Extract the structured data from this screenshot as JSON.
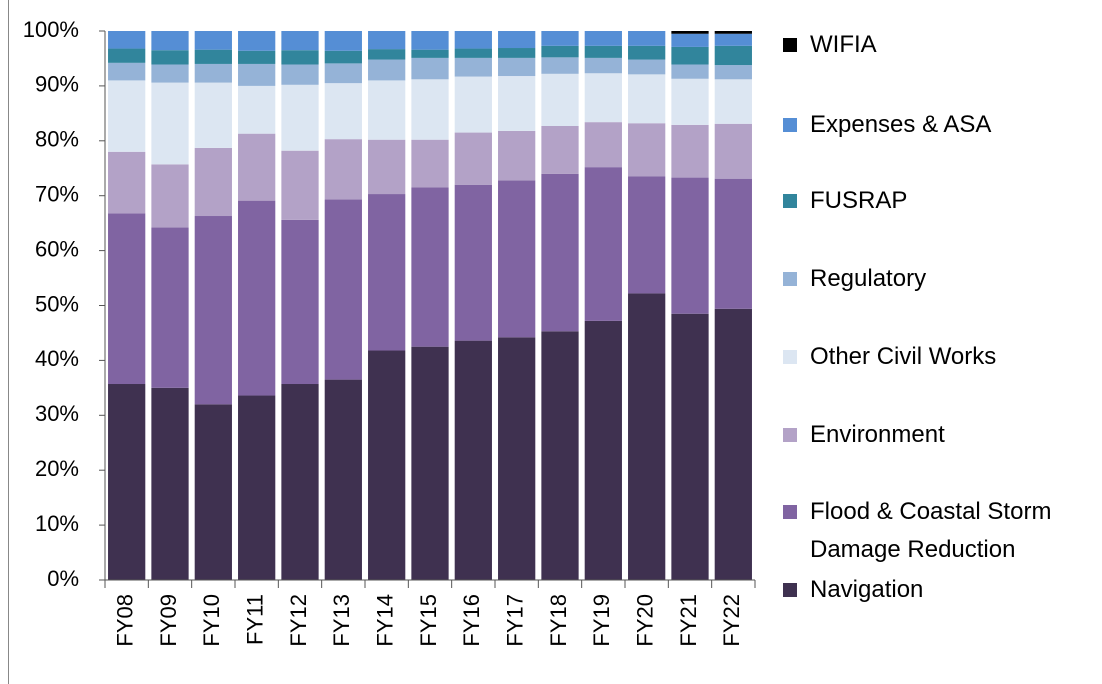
{
  "chart_data": {
    "type": "stacked_bar_percent",
    "categories": [
      "FY08",
      "FY09",
      "FY10",
      "FY11",
      "FY12",
      "FY13",
      "FY14",
      "FY15",
      "FY16",
      "FY17",
      "FY18",
      "FY19",
      "FY20",
      "FY21",
      "FY22"
    ],
    "series": [
      {
        "name": "Navigation",
        "color": "#3f3150",
        "values": [
          35.7,
          35,
          32,
          33.6,
          35.7,
          36.5,
          41.8,
          42.5,
          43.6,
          44.2,
          45.3,
          47.2,
          52.2,
          48.5,
          49.4
        ]
      },
      {
        "name": "Flood & Coastal Storm Damage Reduction",
        "color": "#8064a2",
        "values": [
          31.1,
          29.2,
          34.3,
          35.5,
          29.9,
          32.8,
          28.5,
          29,
          28.4,
          28.6,
          28.7,
          28,
          21.3,
          24.8,
          23.7
        ]
      },
      {
        "name": "Environment",
        "color": "#b3a2c7",
        "values": [
          11.2,
          11.5,
          12.4,
          12.2,
          12.6,
          11,
          9.9,
          8.7,
          9.5,
          9,
          8.7,
          8.2,
          9.7,
          9.6,
          10
        ]
      },
      {
        "name": "Other Civil Works",
        "color": "#dce6f2",
        "values": [
          13,
          14.9,
          11.9,
          8.7,
          12,
          10.2,
          10.8,
          11,
          10.2,
          10,
          9.5,
          8.9,
          8.9,
          8.4,
          8.1
        ]
      },
      {
        "name": "Regulatory",
        "color": "#95b3d7",
        "values": [
          3.2,
          3.3,
          3.4,
          4,
          3.7,
          3.6,
          3.8,
          3.9,
          3.4,
          3.3,
          3,
          2.8,
          2.7,
          2.6,
          2.6
        ]
      },
      {
        "name": "FUSRAP",
        "color": "#31859c",
        "values": [
          2.6,
          2.6,
          2.6,
          2.4,
          2.6,
          2.3,
          1.9,
          1.5,
          1.7,
          1.8,
          2.1,
          2.2,
          2.5,
          3.2,
          3.5
        ]
      },
      {
        "name": "Expenses & ASA",
        "color": "#558ed5",
        "values": [
          3.2,
          3.5,
          3.4,
          3.6,
          3.5,
          3.6,
          3.3,
          3.4,
          3.2,
          3.1,
          2.7,
          2.7,
          2.7,
          2.4,
          2.2
        ]
      },
      {
        "name": "WIFIA",
        "color": "#000000",
        "values": [
          0,
          0,
          0,
          0,
          0,
          0,
          0,
          0,
          0,
          0,
          0,
          0,
          0,
          0.5,
          0.5
        ]
      }
    ],
    "ylim": [
      0,
      100
    ],
    "yticks": [
      {
        "value": 0,
        "label": "0%"
      },
      {
        "value": 10,
        "label": "10%"
      },
      {
        "value": 20,
        "label": "20%"
      },
      {
        "value": 30,
        "label": "30%"
      },
      {
        "value": 40,
        "label": "40%"
      },
      {
        "value": 50,
        "label": "50%"
      },
      {
        "value": 60,
        "label": "60%"
      },
      {
        "value": 70,
        "label": "70%"
      },
      {
        "value": 80,
        "label": "80%"
      },
      {
        "value": 90,
        "label": "90%"
      },
      {
        "value": 100,
        "label": "100%"
      }
    ],
    "legend": "right"
  }
}
